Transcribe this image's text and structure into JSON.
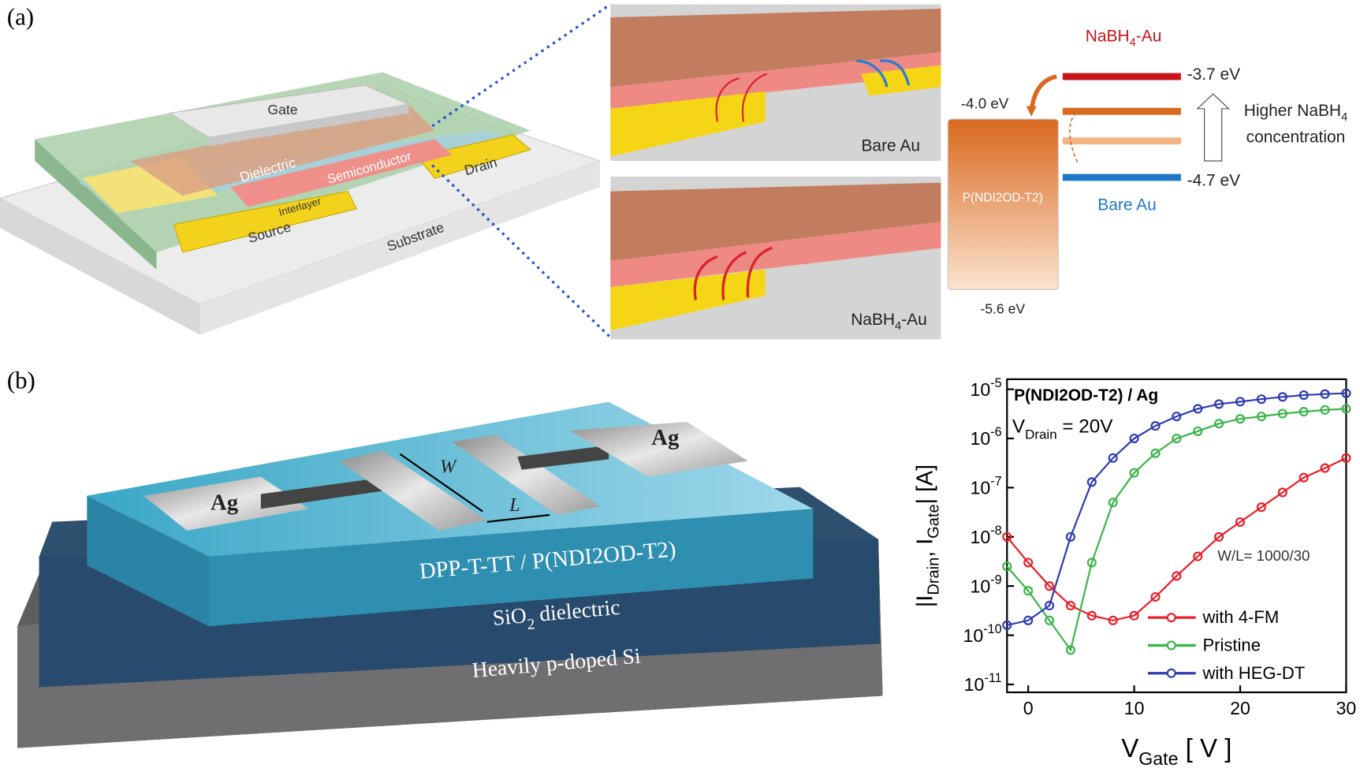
{
  "panel_a": {
    "label": "(a)",
    "device": {
      "gate": "Gate",
      "dielectric": "Dielectric",
      "semiconductor": "Semiconductor",
      "drain": "Drain",
      "interlayer": "Interlayer",
      "source": "Source",
      "substrate": "Substrate"
    },
    "inset_top": "Bare Au",
    "inset_bottom": "NaBH_{4}-Au",
    "energy": {
      "nabh4_label": "NaBH_{4}-Au",
      "level_top": "-3.7 eV",
      "homo_lumo_top": "-4.0 eV",
      "arrow_label_1": "Higher NaBH_{4}",
      "arrow_label_2": "concentration",
      "level_bottom": "-4.7 eV",
      "bare_label": "Bare Au",
      "polymer": "P(NDI2OD-T2)",
      "polymer_bottom": "-5.6 eV"
    }
  },
  "panel_b": {
    "label": "(b)",
    "electrode_left": "Ag",
    "electrode_right": "Ag",
    "width": "W",
    "length": "L",
    "semiconductor": "DPP-T-TT / P(NDI2OD-T2)",
    "dielectric": "SiO_{2} dielectric",
    "substrate": "Heavily p-doped Si"
  },
  "chart_data": {
    "type": "line",
    "title": "P(NDI2OD-T2) / Ag",
    "annotations": [
      "V_{Drain} = 20V",
      "W/L= 1000/30"
    ],
    "x_label": "V_{Gate} [ V ]",
    "y_label": "|I_{Drain}, I_{Gate}| [A]",
    "y_log": true,
    "legend": "lower right",
    "x": [
      -2,
      0,
      2,
      4,
      6,
      8,
      10,
      12,
      14,
      16,
      18,
      20,
      22,
      24,
      26,
      28,
      30
    ],
    "series": [
      {
        "name": "with 4-FM",
        "color": "#e8202a",
        "values": [
          1e-08,
          3e-09,
          1e-09,
          4e-10,
          2.5e-10,
          2e-10,
          2.5e-10,
          6e-10,
          1.6e-09,
          4e-09,
          1e-08,
          2e-08,
          4e-08,
          8e-08,
          1.6e-07,
          2.5e-07,
          4e-07
        ]
      },
      {
        "name": "Pristine",
        "color": "#3cb44a",
        "values": [
          2.5e-09,
          8e-10,
          2e-10,
          5e-11,
          3e-09,
          5e-08,
          2e-07,
          5e-07,
          1e-06,
          1.4e-06,
          2e-06,
          2.5e-06,
          2.8e-06,
          3.2e-06,
          3.5e-06,
          3.8e-06,
          4e-06
        ]
      },
      {
        "name": "with HEG-DT",
        "color": "#2e3cae",
        "values": [
          1.6e-10,
          2e-10,
          4e-10,
          1e-08,
          1.3e-07,
          4e-07,
          1e-06,
          1.8e-06,
          2.8e-06,
          4e-06,
          5e-06,
          5.6e-06,
          6.3e-06,
          7e-06,
          7.6e-06,
          8e-06,
          8.3e-06
        ]
      }
    ],
    "xlim": [
      -2,
      30
    ],
    "xticks": [
      0,
      10,
      20,
      30
    ],
    "ylim": [
      6.9e-12,
      1.6e-05
    ],
    "yticks": [
      {
        "value": 1e-11,
        "label": "10^{-11}"
      },
      {
        "value": 1e-10,
        "label": "10^{-10}"
      },
      {
        "value": 1e-09,
        "label": "10^{-9}"
      },
      {
        "value": 1e-08,
        "label": "10^{-8}"
      },
      {
        "value": 1e-07,
        "label": "10^{-7}"
      },
      {
        "value": 1e-06,
        "label": "10^{-6}"
      },
      {
        "value": 1e-05,
        "label": "10^{-5}"
      }
    ]
  }
}
